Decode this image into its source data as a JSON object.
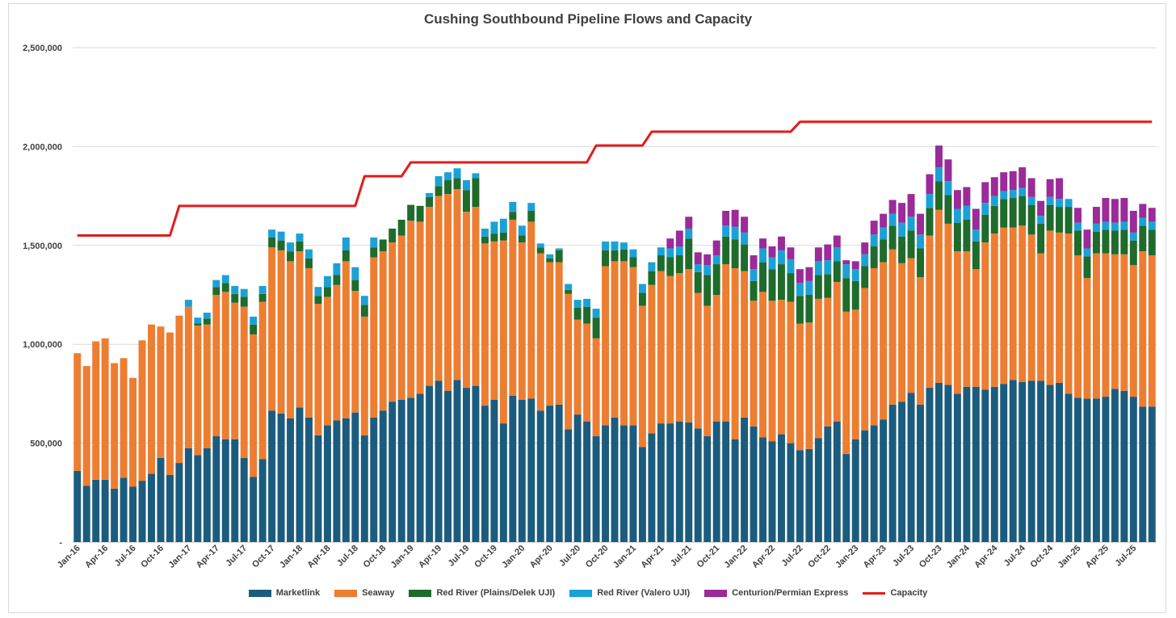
{
  "chart_data": {
    "type": "bar",
    "stacked": true,
    "title": "Cushing Southbound Pipeline Flows and Capacity",
    "xlabel": "",
    "ylabel": "",
    "ylim": [
      0,
      2500000
    ],
    "yticks": [
      0,
      500000,
      1000000,
      1500000,
      2000000,
      2500000
    ],
    "ytick_labels": [
      "-",
      "500,000",
      "1,000,000",
      "1,500,000",
      "2,000,000",
      "2,500,000"
    ],
    "grid": true,
    "legend_position": "bottom",
    "xtick_labels": [
      "Jan-16",
      "Apr-16",
      "Jul-16",
      "Oct-16",
      "Jan-17",
      "Apr-17",
      "Jul-17",
      "Oct-17",
      "Jan-18",
      "Apr-18",
      "Jul-18",
      "Oct-18",
      "Jan-19",
      "Apr-19",
      "Jul-19",
      "Oct-19",
      "Jan-20",
      "Apr-20",
      "Jul-20",
      "Oct-20",
      "Jan-21",
      "Apr-21",
      "Jul-21",
      "Oct-21",
      "Jan-22",
      "Apr-22",
      "Jul-22",
      "Oct-22",
      "Jan-23",
      "Apr-23",
      "Jul-23",
      "Oct-23",
      "Jan-24",
      "Apr-24",
      "Jul-24",
      "Oct-24",
      "Jan-25",
      "Apr-25",
      "Jul-25"
    ],
    "start_month": "Jan-16",
    "series": [
      {
        "name": "Marketlink",
        "color": "#1b5c7e",
        "values": [
          360000,
          285000,
          315000,
          315000,
          270000,
          325000,
          280000,
          310000,
          345000,
          425000,
          340000,
          400000,
          475000,
          440000,
          475000,
          535000,
          520000,
          520000,
          425000,
          330000,
          420000,
          665000,
          650000,
          625000,
          680000,
          630000,
          540000,
          590000,
          615000,
          625000,
          655000,
          540000,
          630000,
          665000,
          710000,
          720000,
          730000,
          750000,
          790000,
          815000,
          765000,
          820000,
          780000,
          790000,
          690000,
          720000,
          600000,
          740000,
          720000,
          725000,
          665000,
          690000,
          695000,
          570000,
          645000,
          610000,
          535000,
          590000,
          630000,
          590000,
          590000,
          480000,
          550000,
          600000,
          600000,
          610000,
          605000,
          575000,
          535000,
          610000,
          610000,
          520000,
          630000,
          585000,
          530000,
          510000,
          545000,
          500000,
          465000,
          470000,
          525000,
          585000,
          610000,
          445000,
          520000,
          565000,
          590000,
          620000,
          695000,
          710000,
          755000,
          695000,
          780000,
          805000,
          795000,
          750000,
          785000,
          785000,
          770000,
          785000,
          800000,
          820000,
          810000,
          815000,
          815000,
          795000,
          805000,
          750000,
          730000,
          725000,
          725000,
          735000,
          775000,
          765000,
          735000,
          685000,
          685000
        ]
      },
      {
        "name": "Seaway",
        "color": "#ed7d31",
        "values": [
          595000,
          605000,
          700000,
          715000,
          635000,
          605000,
          550000,
          710000,
          755000,
          665000,
          720000,
          745000,
          715000,
          655000,
          625000,
          715000,
          745000,
          690000,
          765000,
          720000,
          795000,
          825000,
          825000,
          795000,
          790000,
          755000,
          665000,
          650000,
          685000,
          795000,
          615000,
          600000,
          810000,
          805000,
          805000,
          830000,
          895000,
          870000,
          905000,
          935000,
          995000,
          965000,
          890000,
          905000,
          820000,
          800000,
          925000,
          890000,
          795000,
          895000,
          795000,
          725000,
          720000,
          685000,
          480000,
          495000,
          495000,
          805000,
          790000,
          830000,
          800000,
          715000,
          750000,
          770000,
          745000,
          750000,
          775000,
          685000,
          660000,
          640000,
          795000,
          865000,
          740000,
          635000,
          735000,
          710000,
          680000,
          715000,
          640000,
          640000,
          705000,
          650000,
          705000,
          720000,
          655000,
          720000,
          795000,
          795000,
          785000,
          700000,
          680000,
          645000,
          770000,
          875000,
          815000,
          720000,
          685000,
          595000,
          745000,
          775000,
          790000,
          770000,
          790000,
          740000,
          645000,
          780000,
          760000,
          810000,
          720000,
          610000,
          735000,
          725000,
          680000,
          690000,
          665000,
          785000,
          765000
        ]
      },
      {
        "name": "Red River (Plains/Delek UJI)",
        "color": "#1f6b2b",
        "values": [
          0,
          0,
          0,
          0,
          0,
          0,
          0,
          0,
          0,
          0,
          0,
          0,
          0,
          10000,
          30000,
          40000,
          45000,
          45000,
          50000,
          50000,
          40000,
          50000,
          50000,
          50000,
          50000,
          50000,
          40000,
          50000,
          50000,
          55000,
          55000,
          60000,
          50000,
          60000,
          70000,
          80000,
          80000,
          80000,
          50000,
          50000,
          70000,
          55000,
          110000,
          145000,
          35000,
          40000,
          40000,
          40000,
          35000,
          55000,
          30000,
          20000,
          60000,
          20000,
          60000,
          85000,
          105000,
          80000,
          55000,
          60000,
          50000,
          65000,
          70000,
          80000,
          95000,
          90000,
          155000,
          105000,
          155000,
          155000,
          140000,
          145000,
          135000,
          100000,
          150000,
          160000,
          180000,
          145000,
          140000,
          140000,
          120000,
          120000,
          105000,
          170000,
          145000,
          110000,
          110000,
          115000,
          120000,
          135000,
          140000,
          145000,
          140000,
          145000,
          145000,
          145000,
          160000,
          140000,
          140000,
          140000,
          145000,
          150000,
          150000,
          150000,
          150000,
          130000,
          130000,
          135000,
          125000,
          110000,
          110000,
          120000,
          120000,
          125000,
          125000,
          130000,
          130000
        ]
      },
      {
        "name": "Red River (Valero UJI)",
        "color": "#1ca1d6",
        "values": [
          0,
          0,
          0,
          0,
          0,
          0,
          0,
          0,
          0,
          0,
          0,
          0,
          35000,
          30000,
          30000,
          35000,
          40000,
          40000,
          40000,
          40000,
          40000,
          40000,
          45000,
          45000,
          40000,
          45000,
          45000,
          55000,
          60000,
          65000,
          65000,
          45000,
          50000,
          0,
          0,
          0,
          0,
          0,
          20000,
          50000,
          40000,
          50000,
          50000,
          25000,
          40000,
          60000,
          70000,
          50000,
          50000,
          40000,
          20000,
          20000,
          10000,
          30000,
          40000,
          40000,
          45000,
          45000,
          45000,
          35000,
          40000,
          45000,
          45000,
          40000,
          45000,
          45000,
          50000,
          40000,
          50000,
          45000,
          55000,
          65000,
          60000,
          60000,
          70000,
          60000,
          70000,
          70000,
          65000,
          70000,
          70000,
          70000,
          70000,
          70000,
          60000,
          60000,
          60000,
          60000,
          60000,
          70000,
          70000,
          70000,
          70000,
          70000,
          70000,
          70000,
          70000,
          60000,
          60000,
          50000,
          40000,
          40000,
          40000,
          40000,
          40000,
          40000,
          40000,
          40000,
          40000,
          40000,
          40000,
          40000,
          40000,
          40000,
          40000,
          40000,
          40000
        ]
      },
      {
        "name": "Centurion/Permian Express",
        "color": "#9a2b99",
        "values": [
          0,
          0,
          0,
          0,
          0,
          0,
          0,
          0,
          0,
          0,
          0,
          0,
          0,
          0,
          0,
          0,
          0,
          0,
          0,
          0,
          0,
          0,
          0,
          0,
          0,
          0,
          0,
          0,
          0,
          0,
          0,
          0,
          0,
          0,
          0,
          0,
          0,
          0,
          0,
          0,
          0,
          0,
          0,
          0,
          0,
          0,
          0,
          0,
          0,
          0,
          0,
          0,
          0,
          0,
          0,
          0,
          0,
          0,
          0,
          0,
          0,
          0,
          0,
          0,
          50000,
          80000,
          60000,
          60000,
          55000,
          75000,
          75000,
          85000,
          80000,
          70000,
          50000,
          55000,
          70000,
          60000,
          70000,
          70000,
          70000,
          80000,
          60000,
          20000,
          40000,
          60000,
          70000,
          70000,
          70000,
          100000,
          115000,
          105000,
          100000,
          110000,
          110000,
          95000,
          95000,
          105000,
          105000,
          95000,
          95000,
          95000,
          105000,
          95000,
          75000,
          90000,
          105000,
          0,
          75000,
          95000,
          85000,
          120000,
          120000,
          120000,
          110000,
          70000,
          70000
        ]
      }
    ],
    "capacity": {
      "name": "Capacity",
      "color": "#e51a1a",
      "values": [
        1550000,
        1550000,
        1550000,
        1550000,
        1550000,
        1550000,
        1550000,
        1550000,
        1550000,
        1550000,
        1550000,
        1700000,
        1700000,
        1700000,
        1700000,
        1700000,
        1700000,
        1700000,
        1700000,
        1700000,
        1700000,
        1700000,
        1700000,
        1700000,
        1700000,
        1700000,
        1700000,
        1700000,
        1700000,
        1700000,
        1700000,
        1850000,
        1850000,
        1850000,
        1850000,
        1850000,
        1920000,
        1920000,
        1920000,
        1920000,
        1920000,
        1920000,
        1920000,
        1920000,
        1920000,
        1920000,
        1920000,
        1920000,
        1920000,
        1920000,
        1920000,
        1920000,
        1920000,
        1920000,
        1920000,
        1920000,
        2005000,
        2005000,
        2005000,
        2005000,
        2005000,
        2005000,
        2075000,
        2075000,
        2075000,
        2075000,
        2075000,
        2075000,
        2075000,
        2075000,
        2075000,
        2075000,
        2075000,
        2075000,
        2075000,
        2075000,
        2075000,
        2075000,
        2125000,
        2125000,
        2125000,
        2125000,
        2125000,
        2125000,
        2125000,
        2125000,
        2125000,
        2125000,
        2125000,
        2125000,
        2125000,
        2125000,
        2125000,
        2125000,
        2125000,
        2125000,
        2125000,
        2125000,
        2125000,
        2125000,
        2125000,
        2125000,
        2125000,
        2125000,
        2125000,
        2125000,
        2125000,
        2125000,
        2125000,
        2125000,
        2125000,
        2125000,
        2125000,
        2125000,
        2125000,
        2125000,
        2125000
      ]
    }
  },
  "legend": {
    "items": [
      {
        "label": "Marketlink",
        "color": "#1b5c7e",
        "kind": "box"
      },
      {
        "label": "Seaway",
        "color": "#ed7d31",
        "kind": "box"
      },
      {
        "label": "Red River (Plains/Delek UJI)",
        "color": "#1f6b2b",
        "kind": "box"
      },
      {
        "label": "Red River (Valero UJI)",
        "color": "#1ca1d6",
        "kind": "box"
      },
      {
        "label": "Centurion/Permian Express",
        "color": "#9a2b99",
        "kind": "box"
      },
      {
        "label": "Capacity",
        "color": "#e51a1a",
        "kind": "line"
      }
    ]
  }
}
